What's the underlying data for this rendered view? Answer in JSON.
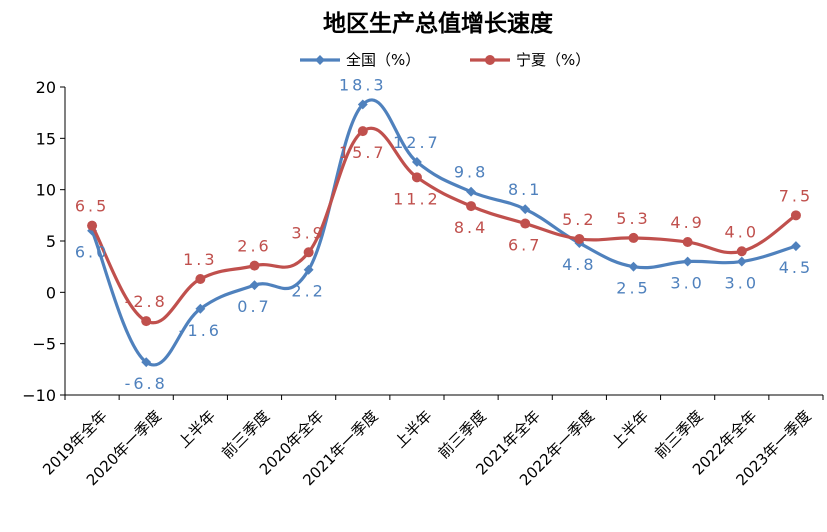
{
  "chart_data": {
    "type": "line",
    "title": "地区生产总值增长速度",
    "categories": [
      "2019年全年",
      "2020年一季度",
      "上半年",
      "前三季度",
      "2020年全年",
      "2021年一季度",
      "上半年",
      "前三季度",
      "2021年全年",
      "2022年一季度",
      "上半年",
      "前三季度",
      "2022年全年",
      "2023年一季度"
    ],
    "series": [
      {
        "name": "全国（%）",
        "color": "#4F81BD",
        "values": [
          6.0,
          -6.8,
          -1.6,
          0.7,
          2.2,
          18.3,
          12.7,
          9.8,
          8.1,
          4.8,
          2.5,
          3.0,
          3.0,
          4.5
        ],
        "labels": [
          "6.0",
          "-6.8",
          "-1.6",
          "0.7",
          "2.2",
          "18.3",
          "12.7",
          "9.8",
          "8.1",
          "4.8",
          "2.5",
          "3.0",
          "3.0",
          "4.5"
        ]
      },
      {
        "name": "宁夏（%）",
        "color": "#C0504D",
        "values": [
          6.5,
          -2.8,
          1.3,
          2.6,
          3.9,
          15.7,
          11.2,
          8.4,
          6.7,
          5.2,
          5.3,
          4.9,
          4.0,
          7.5
        ],
        "labels": [
          "6.5",
          "-2.8",
          "1.3",
          "2.6",
          "3.9",
          "15.7",
          "11.2",
          "8.4",
          "6.7",
          "5.2",
          "5.3",
          "4.9",
          "4.0",
          "7.5"
        ]
      }
    ],
    "ylim": [
      -10,
      20
    ],
    "yticks": [
      -10,
      -5,
      0,
      5,
      10,
      15,
      20
    ],
    "ytick_labels": [
      "−10",
      "−5",
      "0",
      "5",
      "10",
      "15",
      "20"
    ],
    "legend_position": "top-center",
    "grid": false
  }
}
